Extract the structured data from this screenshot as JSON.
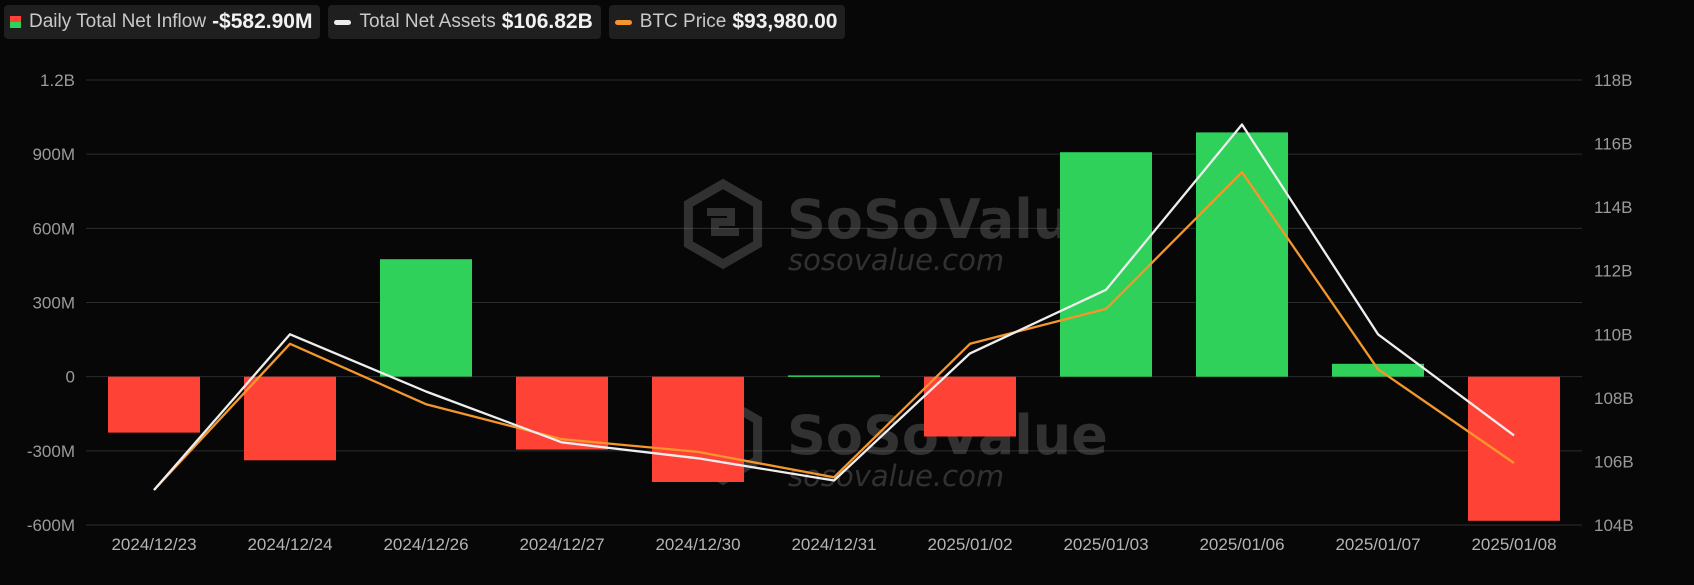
{
  "legend": {
    "inflow": {
      "label": "Daily Total Net Inflow",
      "value": "-$582.90M",
      "color_up": "#2fd15a",
      "color_down": "#ff4236"
    },
    "assets": {
      "label": "Total Net Assets",
      "value": "$106.82B",
      "color": "#eeeeee"
    },
    "btc": {
      "label": "BTC Price",
      "value": "$93,980.00",
      "color": "#f3972c"
    }
  },
  "watermark": {
    "brand": "SoSoValue",
    "site": "sosovalue.com"
  },
  "chart_data": {
    "type": "bar",
    "categories": [
      "2024/12/23",
      "2024/12/24",
      "2024/12/26",
      "2024/12/27",
      "2024/12/30",
      "2024/12/31",
      "2025/01/02",
      "2025/01/03",
      "2025/01/06",
      "2025/01/07",
      "2025/01/08"
    ],
    "series": [
      {
        "name": "Daily Total Net Inflow",
        "type": "bar",
        "axis": "left",
        "values": [
          -226,
          -338,
          475,
          -295,
          -426,
          5,
          -242,
          908,
          988,
          52,
          -583
        ]
      },
      {
        "name": "Total Net Assets",
        "type": "line",
        "axis": "right",
        "values": [
          105.1,
          110.0,
          108.2,
          106.6,
          106.1,
          105.4,
          109.4,
          111.4,
          116.6,
          110.0,
          106.82
        ]
      },
      {
        "name": "BTC Price",
        "type": "line",
        "axis": "right",
        "values": [
          105.1,
          109.7,
          107.8,
          106.7,
          106.3,
          105.5,
          109.7,
          110.8,
          115.1,
          108.9,
          105.95
        ]
      }
    ],
    "y_left": {
      "unit": "USD",
      "ylim": [
        -600,
        1200
      ],
      "ticks": [
        1200,
        900,
        600,
        300,
        0,
        -300,
        -600
      ],
      "tick_labels": [
        "1.2B",
        "900M",
        "600M",
        "300M",
        "0",
        "-300M",
        "-600M"
      ]
    },
    "y_right": {
      "ylim": [
        104,
        118
      ],
      "ticks": [
        118,
        116,
        114,
        112,
        110,
        108,
        106,
        104
      ],
      "tick_labels": [
        "118B",
        "116B",
        "114B",
        "112B",
        "110B",
        "108B",
        "106B",
        "104B"
      ]
    },
    "colors": {
      "positive": "#2fd15a",
      "negative": "#ff4236",
      "assets_line": "#eeeeee",
      "btc_line": "#f3972c",
      "grid": "#2c2c2c"
    },
    "grid": true,
    "legend_position": "top-left"
  }
}
